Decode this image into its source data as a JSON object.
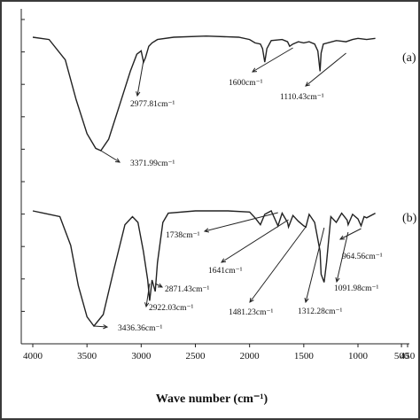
{
  "chart_data": {
    "type": "line",
    "xlabel": "Wave number (cm⁻¹)",
    "xlim": [
      4000,
      450
    ],
    "xticks": [
      {
        "value": 4000,
        "label": "4000"
      },
      {
        "value": 3500,
        "label": "3500"
      },
      {
        "value": 3000,
        "label": "3000"
      },
      {
        "value": 2500,
        "label": "2500"
      },
      {
        "value": 2000,
        "label": "2000"
      },
      {
        "value": 1500,
        "label": "1500"
      },
      {
        "value": 1000,
        "label": "1000"
      },
      {
        "value": 500,
        "label": "500"
      },
      {
        "value": 450,
        "label": "450"
      }
    ],
    "ylabel": "",
    "yticks_count": 11,
    "series": [
      {
        "name": "(a)",
        "points": [
          [
            4000,
            0
          ],
          [
            3850,
            0.02
          ],
          [
            3700,
            0.2
          ],
          [
            3600,
            0.55
          ],
          [
            3500,
            0.85
          ],
          [
            3420,
            0.98
          ],
          [
            3372,
            1.0
          ],
          [
            3300,
            0.9
          ],
          [
            3200,
            0.6
          ],
          [
            3100,
            0.3
          ],
          [
            3040,
            0.15
          ],
          [
            3000,
            0.12
          ],
          [
            2978,
            0.22
          ],
          [
            2960,
            0.18
          ],
          [
            2930,
            0.08
          ],
          [
            2900,
            0.05
          ],
          [
            2850,
            0.02
          ],
          [
            2700,
            0
          ],
          [
            2400,
            -0.01
          ],
          [
            2100,
            0
          ],
          [
            2000,
            0.02
          ],
          [
            1950,
            0.05
          ],
          [
            1900,
            0.06
          ],
          [
            1880,
            0.1
          ],
          [
            1860,
            0.22
          ],
          [
            1840,
            0.1
          ],
          [
            1800,
            0.03
          ],
          [
            1700,
            0.02
          ],
          [
            1650,
            0.04
          ],
          [
            1630,
            0.08
          ],
          [
            1600,
            0.06
          ],
          [
            1550,
            0.04
          ],
          [
            1500,
            0.05
          ],
          [
            1450,
            0.04
          ],
          [
            1400,
            0.06
          ],
          [
            1370,
            0.12
          ],
          [
            1350,
            0.3
          ],
          [
            1340,
            0.14
          ],
          [
            1320,
            0.06
          ],
          [
            1200,
            0.03
          ],
          [
            1110,
            0.04
          ],
          [
            1050,
            0.02
          ],
          [
            1000,
            0.01
          ],
          [
            900,
            0.02
          ],
          [
            800,
            0.01
          ]
        ]
      },
      {
        "name": "(b)",
        "points": [
          [
            4000,
            0
          ],
          [
            3900,
            0.02
          ],
          [
            3750,
            0.05
          ],
          [
            3650,
            0.3
          ],
          [
            3580,
            0.65
          ],
          [
            3500,
            0.92
          ],
          [
            3436,
            1.0
          ],
          [
            3350,
            0.9
          ],
          [
            3250,
            0.5
          ],
          [
            3150,
            0.12
          ],
          [
            3080,
            0.05
          ],
          [
            3030,
            0.1
          ],
          [
            2980,
            0.35
          ],
          [
            2940,
            0.6
          ],
          [
            2922,
            0.78
          ],
          [
            2900,
            0.6
          ],
          [
            2870,
            0.7
          ],
          [
            2850,
            0.45
          ],
          [
            2800,
            0.1
          ],
          [
            2750,
            0.02
          ],
          [
            2500,
            0
          ],
          [
            2200,
            0
          ],
          [
            2000,
            0.01
          ],
          [
            1950,
            0.06
          ],
          [
            1900,
            0.12
          ],
          [
            1860,
            0.03
          ],
          [
            1800,
            0.0
          ],
          [
            1738,
            0.13
          ],
          [
            1700,
            0.02
          ],
          [
            1650,
            0.1
          ],
          [
            1641,
            0.14
          ],
          [
            1600,
            0.04
          ],
          [
            1550,
            0.09
          ],
          [
            1500,
            0.13
          ],
          [
            1481,
            0.14
          ],
          [
            1450,
            0.03
          ],
          [
            1400,
            0.1
          ],
          [
            1350,
            0.35
          ],
          [
            1340,
            0.55
          ],
          [
            1312,
            0.62
          ],
          [
            1290,
            0.45
          ],
          [
            1250,
            0.05
          ],
          [
            1200,
            0.1
          ],
          [
            1150,
            0.02
          ],
          [
            1100,
            0.08
          ],
          [
            1091,
            0.12
          ],
          [
            1050,
            0.03
          ],
          [
            1000,
            0.07
          ],
          [
            964,
            0.13
          ],
          [
            930,
            0.05
          ],
          [
            900,
            0.06
          ],
          [
            800,
            0.02
          ]
        ]
      }
    ],
    "panel_labels": [
      "(a)",
      "(b)"
    ],
    "annotations": [
      {
        "panel": "a",
        "text": "2977.81cm⁻¹",
        "x": 2978
      },
      {
        "panel": "a",
        "text": "3371.99cm⁻¹",
        "x": 3372
      },
      {
        "panel": "a",
        "text": "1600cm⁻¹",
        "x": 1600
      },
      {
        "panel": "a",
        "text": "1110.43cm⁻¹",
        "x": 1110
      },
      {
        "panel": "b",
        "text": "1738cm⁻¹",
        "x": 1738
      },
      {
        "panel": "b",
        "text": "1641cm⁻¹",
        "x": 1641
      },
      {
        "panel": "b",
        "text": "2871.43cm⁻¹",
        "x": 2871
      },
      {
        "panel": "b",
        "text": "2922.03cm⁻¹",
        "x": 2922
      },
      {
        "panel": "b",
        "text": "3436.36cm⁻¹",
        "x": 3436
      },
      {
        "panel": "b",
        "text": "1481.23cm⁻¹",
        "x": 1481
      },
      {
        "panel": "b",
        "text": "1312.28cm⁻¹",
        "x": 1312
      },
      {
        "panel": "b",
        "text": "1091.98cm⁻¹",
        "x": 1091
      },
      {
        "panel": "b",
        "text": "964.56cm⁻¹",
        "x": 964
      }
    ],
    "grid": false,
    "legend": "none"
  }
}
